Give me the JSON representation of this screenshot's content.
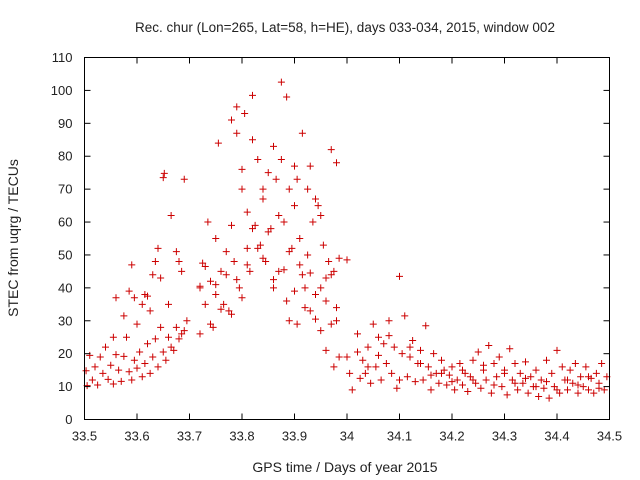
{
  "chart_data": {
    "type": "scatter",
    "title": "Rec. chur (Lon=265, Lat=58, h=HE), days 033-034, 2015, window 002",
    "xlabel": "GPS time / Days of year 2015",
    "ylabel": "STEC from uqrg / TECUs",
    "xlim": [
      33.5,
      34.5
    ],
    "ylim": [
      0,
      110
    ],
    "xticks": [
      "33.5",
      "33.6",
      "33.7",
      "33.8",
      "33.9",
      "34",
      "34.1",
      "34.2",
      "34.3",
      "34.4",
      "34.5"
    ],
    "yticks": [
      "0",
      "10",
      "20",
      "30",
      "40",
      "50",
      "60",
      "70",
      "80",
      "90",
      "100",
      "110"
    ],
    "grid": false,
    "legend": "none",
    "marker": "plus",
    "color": "#cc0000",
    "series": [
      {
        "points": [
          [
            33.503,
            14.8
          ],
          [
            33.505,
            10.3
          ],
          [
            33.51,
            19.5
          ],
          [
            33.515,
            12.0
          ],
          [
            33.52,
            16.0
          ],
          [
            33.525,
            10.5
          ],
          [
            33.53,
            19.0
          ],
          [
            33.535,
            14.0
          ],
          [
            33.54,
            22.0
          ],
          [
            33.545,
            12.2
          ],
          [
            33.55,
            16.5
          ],
          [
            33.555,
            10.8
          ],
          [
            33.56,
            19.7
          ],
          [
            33.565,
            15.0
          ],
          [
            33.57,
            11.6
          ],
          [
            33.575,
            19.2
          ],
          [
            33.58,
            25.0
          ],
          [
            33.585,
            14.5
          ],
          [
            33.59,
            12.0
          ],
          [
            33.595,
            18.0
          ],
          [
            33.6,
            15.6
          ],
          [
            33.605,
            20.5
          ],
          [
            33.61,
            13.0
          ],
          [
            33.615,
            17.0
          ],
          [
            33.62,
            23.0
          ],
          [
            33.625,
            14.0
          ],
          [
            33.63,
            19.0
          ],
          [
            33.635,
            24.5
          ],
          [
            33.64,
            16.0
          ],
          [
            33.645,
            28.0
          ],
          [
            33.65,
            20.5
          ],
          [
            33.655,
            18.0
          ],
          [
            33.66,
            25.0
          ],
          [
            33.665,
            22.0
          ],
          [
            33.67,
            21.0
          ],
          [
            33.675,
            28.0
          ],
          [
            33.68,
            24.5
          ],
          [
            33.685,
            26.0
          ],
          [
            33.69,
            27.0
          ],
          [
            33.555,
            25.0
          ],
          [
            33.56,
            37.0
          ],
          [
            33.575,
            31.5
          ],
          [
            33.585,
            39.0
          ],
          [
            33.59,
            47.0
          ],
          [
            33.595,
            37.0
          ],
          [
            33.6,
            29.0
          ],
          [
            33.61,
            35.0
          ],
          [
            33.615,
            38.0
          ],
          [
            33.62,
            37.5
          ],
          [
            33.625,
            33.0
          ],
          [
            33.63,
            44.0
          ],
          [
            33.635,
            48.0
          ],
          [
            33.64,
            52.0
          ],
          [
            33.645,
            43.0
          ],
          [
            33.65,
            73.5
          ],
          [
            33.652,
            74.8
          ],
          [
            33.66,
            35.0
          ],
          [
            33.665,
            62.0
          ],
          [
            33.675,
            51.0
          ],
          [
            33.68,
            48.0
          ],
          [
            33.685,
            45.0
          ],
          [
            33.69,
            73.0
          ],
          [
            33.695,
            30.0
          ],
          [
            33.72,
            26.0
          ],
          [
            33.72,
            40.0
          ],
          [
            33.725,
            47.5
          ],
          [
            33.73,
            35.0
          ],
          [
            33.735,
            60.0
          ],
          [
            33.74,
            42.0
          ],
          [
            33.745,
            28.0
          ],
          [
            33.75,
            38.0
          ],
          [
            33.75,
            55.0
          ],
          [
            33.755,
            84.0
          ],
          [
            33.76,
            45.0
          ],
          [
            33.765,
            35.0
          ],
          [
            33.77,
            51.0
          ],
          [
            33.775,
            33.0
          ],
          [
            33.78,
            59.0
          ],
          [
            33.78,
            91.0
          ],
          [
            33.785,
            48.0
          ],
          [
            33.79,
            87.0
          ],
          [
            33.79,
            95.0
          ],
          [
            33.795,
            40.0
          ],
          [
            33.8,
            70.0
          ],
          [
            33.8,
            76.0
          ],
          [
            33.805,
            93.0
          ],
          [
            33.81,
            52.0
          ],
          [
            33.81,
            63.0
          ],
          [
            33.815,
            45.0
          ],
          [
            33.82,
            98.5
          ],
          [
            33.82,
            85.0
          ],
          [
            33.825,
            59.0
          ],
          [
            33.83,
            79.0
          ],
          [
            33.835,
            53.0
          ],
          [
            33.84,
            70.0
          ],
          [
            33.84,
            67.0
          ],
          [
            33.845,
            48.0
          ],
          [
            33.85,
            75.0
          ],
          [
            33.855,
            58.0
          ],
          [
            33.86,
            83.0
          ],
          [
            33.86,
            40.0
          ],
          [
            33.865,
            73.0
          ],
          [
            33.87,
            45.0
          ],
          [
            33.875,
            102.5
          ],
          [
            33.875,
            79.0
          ],
          [
            33.88,
            60.0
          ],
          [
            33.885,
            98.0
          ],
          [
            33.885,
            36.0
          ],
          [
            33.89,
            70.0
          ],
          [
            33.89,
            30.0
          ],
          [
            33.895,
            52.0
          ],
          [
            33.9,
            77.0
          ],
          [
            33.9,
            65.0
          ],
          [
            33.905,
            73.0
          ],
          [
            33.905,
            29.0
          ],
          [
            33.91,
            55.0
          ],
          [
            33.915,
            87.0
          ],
          [
            33.915,
            44.0
          ],
          [
            33.92,
            40.0
          ],
          [
            33.925,
            70.0
          ],
          [
            33.925,
            50.0
          ],
          [
            33.93,
            77.0
          ],
          [
            33.93,
            33.0
          ],
          [
            33.935,
            60.0
          ],
          [
            33.94,
            67.0
          ],
          [
            33.94,
            38.0
          ],
          [
            33.945,
            65.0
          ],
          [
            33.95,
            62.0
          ],
          [
            33.95,
            27.0
          ],
          [
            33.955,
            53.0
          ],
          [
            33.96,
            43.0
          ],
          [
            33.96,
            21.0
          ],
          [
            33.965,
            48.0
          ],
          [
            33.97,
            82.0
          ],
          [
            33.97,
            29.0
          ],
          [
            33.975,
            45.0
          ],
          [
            33.975,
            16.0
          ],
          [
            33.98,
            78.0
          ],
          [
            33.98,
            34.0
          ],
          [
            33.985,
            49.0
          ],
          [
            33.985,
            19.0
          ],
          [
            33.72,
            40.5
          ],
          [
            33.73,
            46.5
          ],
          [
            33.74,
            29.0
          ],
          [
            33.75,
            41.0
          ],
          [
            33.76,
            33.5
          ],
          [
            33.77,
            44.0
          ],
          [
            33.78,
            32.0
          ],
          [
            33.79,
            42.5
          ],
          [
            33.8,
            37.0
          ],
          [
            33.81,
            47.0
          ],
          [
            33.82,
            58.0
          ],
          [
            33.83,
            52.0
          ],
          [
            33.84,
            49.0
          ],
          [
            33.85,
            57.0
          ],
          [
            33.86,
            42.5
          ],
          [
            33.87,
            62.0
          ],
          [
            33.88,
            45.5
          ],
          [
            33.89,
            51.0
          ],
          [
            33.9,
            39.0
          ],
          [
            33.91,
            47.0
          ],
          [
            33.92,
            34.0
          ],
          [
            33.93,
            44.5
          ],
          [
            33.94,
            30.5
          ],
          [
            33.95,
            40.0
          ],
          [
            33.96,
            36.0
          ],
          [
            33.97,
            44.0
          ],
          [
            33.98,
            30.0
          ],
          [
            34.0,
            48.5
          ],
          [
            34.0,
            19.0
          ],
          [
            34.005,
            14.0
          ],
          [
            34.01,
            9.0
          ],
          [
            34.02,
            20.5
          ],
          [
            34.025,
            12.5
          ],
          [
            34.03,
            18.0
          ],
          [
            34.035,
            14.0
          ],
          [
            34.04,
            22.0
          ],
          [
            34.045,
            11.0
          ],
          [
            34.05,
            29.0
          ],
          [
            34.055,
            16.0
          ],
          [
            34.06,
            25.0
          ],
          [
            34.065,
            12.0
          ],
          [
            34.07,
            23.0
          ],
          [
            34.075,
            17.0
          ],
          [
            34.08,
            30.0
          ],
          [
            34.085,
            14.0
          ],
          [
            34.09,
            22.0
          ],
          [
            34.095,
            9.5
          ],
          [
            34.1,
            43.5
          ],
          [
            34.105,
            20.0
          ],
          [
            34.11,
            31.5
          ],
          [
            34.115,
            13.0
          ],
          [
            34.12,
            19.0
          ],
          [
            34.125,
            24.0
          ],
          [
            34.13,
            11.5
          ],
          [
            34.135,
            17.0
          ],
          [
            34.14,
            21.0
          ],
          [
            34.145,
            12.0
          ],
          [
            34.15,
            28.5
          ],
          [
            34.155,
            16.0
          ],
          [
            34.16,
            9.0
          ],
          [
            34.165,
            20.0
          ],
          [
            34.17,
            14.0
          ],
          [
            34.175,
            11.0
          ],
          [
            34.18,
            18.0
          ],
          [
            34.185,
            15.0
          ],
          [
            34.19,
            10.5
          ],
          [
            34.195,
            13.5
          ],
          [
            34.2,
            16.0
          ],
          [
            34.205,
            9.0
          ],
          [
            34.21,
            12.0
          ],
          [
            34.215,
            17.0
          ],
          [
            34.22,
            10.5
          ],
          [
            34.225,
            14.0
          ],
          [
            34.23,
            8.5
          ],
          [
            34.235,
            13.0
          ],
          [
            34.24,
            18.0
          ],
          [
            34.245,
            11.0
          ],
          [
            34.25,
            20.5
          ],
          [
            34.255,
            9.5
          ],
          [
            34.26,
            15.0
          ],
          [
            34.265,
            12.0
          ],
          [
            34.27,
            22.5
          ],
          [
            34.275,
            8.0
          ],
          [
            34.28,
            17.0
          ],
          [
            34.285,
            13.0
          ],
          [
            34.29,
            19.0
          ],
          [
            34.295,
            10.0
          ],
          [
            34.3,
            15.0
          ],
          [
            34.305,
            7.5
          ],
          [
            34.31,
            21.5
          ],
          [
            34.315,
            12.0
          ],
          [
            34.32,
            17.0
          ],
          [
            34.325,
            9.0
          ],
          [
            34.33,
            14.0
          ],
          [
            34.335,
            11.0
          ],
          [
            34.34,
            17.5
          ],
          [
            34.345,
            8.0
          ],
          [
            34.35,
            13.0
          ],
          [
            34.355,
            10.0
          ],
          [
            34.36,
            15.0
          ],
          [
            34.365,
            7.0
          ],
          [
            34.37,
            12.0
          ],
          [
            34.375,
            9.5
          ],
          [
            34.38,
            18.0
          ],
          [
            34.385,
            6.5
          ],
          [
            34.39,
            14.0
          ],
          [
            34.395,
            10.0
          ],
          [
            34.4,
            21.0
          ],
          [
            34.405,
            8.0
          ],
          [
            34.41,
            16.0
          ],
          [
            34.415,
            12.0
          ],
          [
            34.42,
            9.0
          ],
          [
            34.425,
            15.0
          ],
          [
            34.43,
            11.0
          ],
          [
            34.435,
            17.0
          ],
          [
            34.44,
            8.0
          ],
          [
            34.445,
            13.0
          ],
          [
            34.45,
            10.0
          ],
          [
            34.455,
            16.0
          ],
          [
            34.46,
            9.0
          ],
          [
            34.465,
            12.5
          ],
          [
            34.47,
            8.0
          ],
          [
            34.475,
            14.0
          ],
          [
            34.48,
            11.0
          ],
          [
            34.485,
            17.0
          ],
          [
            34.49,
            9.0
          ],
          [
            34.495,
            13.0
          ],
          [
            34.02,
            26.0
          ],
          [
            34.04,
            16.0
          ],
          [
            34.06,
            19.5
          ],
          [
            34.08,
            25.5
          ],
          [
            34.1,
            12.0
          ],
          [
            34.12,
            22.0
          ],
          [
            34.14,
            17.0
          ],
          [
            34.16,
            13.5
          ],
          [
            34.18,
            14.0
          ],
          [
            34.2,
            11.5
          ],
          [
            34.22,
            15.0
          ],
          [
            34.24,
            12.0
          ],
          [
            34.26,
            16.5
          ],
          [
            34.28,
            10.5
          ],
          [
            34.3,
            14.0
          ],
          [
            34.32,
            11.0
          ],
          [
            34.34,
            12.5
          ],
          [
            34.36,
            10.0
          ],
          [
            34.38,
            11.5
          ],
          [
            34.4,
            9.0
          ],
          [
            34.42,
            12.0
          ],
          [
            34.44,
            10.5
          ],
          [
            34.46,
            13.0
          ],
          [
            34.48,
            9.5
          ]
        ]
      }
    ]
  }
}
